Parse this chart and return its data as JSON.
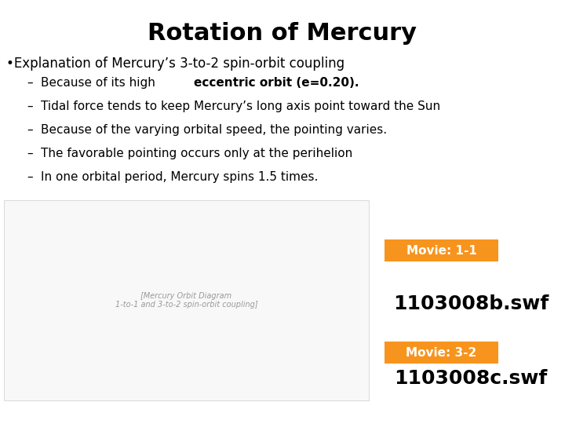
{
  "title": "Rotation of Mercury",
  "title_fontsize": 22,
  "title_fontweight": "bold",
  "bullet_header": "•Explanation of Mercury’s 3-to-2 spin-orbit coupling",
  "bullet_header_fontsize": 12,
  "bullet_items_plain": [
    "Because of its high ",
    "Tidal force tends to keep Mercury’s long axis point toward the Sun",
    "Because of the varying orbital speed, the pointing varies.",
    "The favorable pointing occurs only at the perihelion",
    "In one orbital period, Mercury spins 1.5 times."
  ],
  "bullet_items_bold": [
    "eccentric orbit (e=0.20).",
    "",
    "",
    "",
    ""
  ],
  "bullet_fontsize": 11,
  "dash_char": "–",
  "background_color": "#ffffff",
  "text_color": "#000000",
  "orange_color": "#f7941d",
  "label1_text": "Movie: 1-1",
  "label2_text": "Movie: 3-2",
  "label_fontsize": 11,
  "label_fontweight": "bold",
  "swf1_text": "1103008b.swf",
  "swf2_text": "1103008c.swf",
  "swf_fontsize": 18,
  "image_facecolor": "#f0f0f0",
  "image_edgecolor": "#cccccc"
}
